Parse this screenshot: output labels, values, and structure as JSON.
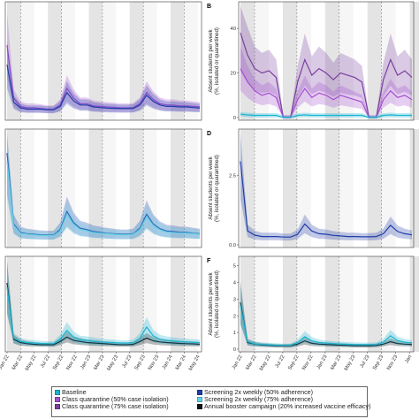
{
  "colors": {
    "baseline": "#1ab4d2",
    "class_q50": "#a44fd0",
    "class_q75": "#7b3fa0",
    "screen50": "#1f3ea8",
    "screen75": "#5fd3e6",
    "booster": "#0c0f14",
    "shade_dark": "#e4e4e4",
    "shade_light": "#f6f6f6",
    "dashed": "#888888"
  },
  "panels": [
    {
      "letter": "",
      "ylabel": ""
    },
    {
      "letter": "B",
      "ylabel": "Absent students per week"
    },
    {
      "letter": "",
      "ylabel": ""
    },
    {
      "letter": "D",
      "ylabel": "Absent students per week"
    },
    {
      "letter": "",
      "ylabel": ""
    },
    {
      "letter": "F",
      "ylabel": "Absent students per week"
    }
  ],
  "ylabel_sub": "(%, isolated or quarantined)",
  "ticks": {
    "left_x": [
      "Jan 22",
      "Mar 22",
      "May 22",
      "Jul 22",
      "Sep 22",
      "Nov 22",
      "Jan 23",
      "Mar 23",
      "May 23",
      "Jul 23",
      "Sep 23",
      "Nov 23",
      "Jan 24",
      "Mar 24",
      "May 24"
    ],
    "right_x": [
      "Jan 22",
      "Mar 22",
      "May 22",
      "Jul 22",
      "Sep 22",
      "Nov 22",
      "Jan 23",
      "Mar 23",
      "May 23",
      "Jul 23",
      "Sep 23",
      "Nov 23",
      "Jan"
    ],
    "panel_b_y": [
      "0",
      "20",
      "40"
    ],
    "panel_d_y": [
      "0.0",
      "2.5"
    ],
    "panel_f_y": [
      "0",
      "1",
      "2",
      "3",
      "4",
      "5"
    ]
  },
  "legend": {
    "col1": [
      {
        "label": "Baseline",
        "color": "#1ab4d2"
      },
      {
        "label": "Class quarantine (50% case isolation)",
        "color": "#a44fd0"
      },
      {
        "label": "Class quarantine (75% case isolation)",
        "color": "#7b3fa0"
      }
    ],
    "col2": [
      {
        "label": "Screening 2x weekly (50% adherence)",
        "color": "#1f3ea8"
      },
      {
        "label": "Screening 2x weekly (75% adherence)",
        "color": "#5fd3e6"
      },
      {
        "label": "Annual booster campaign (20% increased vaccine efficacy)",
        "color": "#0c0f14"
      }
    ]
  },
  "chart_data": [
    {
      "panel": "left-top",
      "type": "line",
      "ylim": [
        0,
        4
      ],
      "x": [
        "Jan 22",
        "Feb 22",
        "Mar 22",
        "Apr 22",
        "May 22",
        "Jun 22",
        "Jul 22",
        "Aug 22",
        "Sep 22",
        "Oct 22",
        "Nov 22",
        "Dec 22",
        "Jan 23",
        "Feb 23",
        "Mar 23",
        "Apr 23",
        "May 23",
        "Jun 23",
        "Jul 23",
        "Aug 23",
        "Sep 23",
        "Oct 23",
        "Nov 23",
        "Dec 23",
        "Jan 24",
        "Feb 24",
        "Mar 24",
        "Apr 24",
        "May 24",
        "Jun 24"
      ],
      "series": [
        {
          "name": "Class quarantine (50% case isolation)",
          "values": [
            2.6,
            0.7,
            0.4,
            0.35,
            0.35,
            0.33,
            0.3,
            0.3,
            0.45,
            1.05,
            0.7,
            0.5,
            0.5,
            0.42,
            0.4,
            0.38,
            0.37,
            0.35,
            0.35,
            0.36,
            0.5,
            0.9,
            0.65,
            0.5,
            0.45,
            0.45,
            0.42,
            0.42,
            0.4,
            0.38
          ]
        },
        {
          "name": "Screening 2x weekly (50% adherence)",
          "values": [
            1.9,
            0.55,
            0.35,
            0.3,
            0.3,
            0.3,
            0.28,
            0.28,
            0.4,
            0.9,
            0.6,
            0.45,
            0.45,
            0.38,
            0.36,
            0.34,
            0.33,
            0.32,
            0.32,
            0.33,
            0.45,
            0.8,
            0.58,
            0.45,
            0.4,
            0.4,
            0.38,
            0.38,
            0.36,
            0.34
          ]
        }
      ]
    },
    {
      "panel": "B",
      "type": "line",
      "ylim": [
        0,
        50
      ],
      "x": [
        "Jan 22",
        "Feb 22",
        "Mar 22",
        "Apr 22",
        "May 22",
        "Jun 22",
        "Jul 22",
        "Aug 22",
        "Sep 22",
        "Oct 22",
        "Nov 22",
        "Dec 22",
        "Jan 23",
        "Feb 23",
        "Mar 23",
        "Apr 23",
        "May 23",
        "Jun 23",
        "Jul 23",
        "Aug 23",
        "Sep 23",
        "Oct 23",
        "Nov 23",
        "Dec 23",
        "Jan 24"
      ],
      "series": [
        {
          "name": "Class quarantine (75% case isolation)",
          "values": [
            38,
            28,
            22,
            20,
            21,
            18,
            0,
            0,
            16,
            26,
            19,
            22,
            20,
            17,
            20,
            19,
            18,
            16,
            0,
            0,
            17,
            26,
            19,
            21,
            18
          ]
        },
        {
          "name": "Class quarantine (50% case isolation)",
          "values": [
            22,
            16,
            12,
            10,
            11,
            9,
            0,
            0,
            8,
            13,
            9,
            11,
            10,
            8,
            10,
            9,
            8,
            7,
            0,
            0,
            8,
            12,
            9,
            10,
            8
          ]
        },
        {
          "name": "Baseline",
          "values": [
            1.5,
            1.2,
            1,
            1,
            1,
            1,
            0,
            0,
            1,
            1.2,
            1,
            1,
            1,
            1,
            1,
            1,
            1,
            1,
            0,
            0,
            1,
            1.2,
            1,
            1,
            1
          ]
        }
      ]
    },
    {
      "panel": "left-middle",
      "type": "line",
      "ylim": [
        0,
        4
      ],
      "x": [
        "Jan 22",
        "Feb 22",
        "Mar 22",
        "Apr 22",
        "May 22",
        "Jun 22",
        "Jul 22",
        "Aug 22",
        "Sep 22",
        "Oct 22",
        "Nov 22",
        "Dec 22",
        "Jan 23",
        "Feb 23",
        "Mar 23",
        "Apr 23",
        "May 23",
        "Jun 23",
        "Jul 23",
        "Aug 23",
        "Sep 23",
        "Oct 23",
        "Nov 23",
        "Dec 23",
        "Jan 24",
        "Feb 24",
        "Mar 24",
        "Apr 24",
        "May 24",
        "Jun 24"
      ],
      "series": [
        {
          "name": "Screening 2x weekly (50% adherence)",
          "values": [
            3.3,
            0.75,
            0.45,
            0.4,
            0.38,
            0.36,
            0.35,
            0.35,
            0.55,
            1.2,
            0.8,
            0.6,
            0.55,
            0.48,
            0.45,
            0.42,
            0.4,
            0.38,
            0.38,
            0.4,
            0.6,
            1.1,
            0.75,
            0.58,
            0.5,
            0.48,
            0.45,
            0.45,
            0.42,
            0.4
          ]
        },
        {
          "name": "Screening 2x weekly (75% adherence)",
          "values": [
            3.0,
            0.7,
            0.42,
            0.38,
            0.36,
            0.34,
            0.33,
            0.33,
            0.5,
            1.1,
            0.72,
            0.55,
            0.5,
            0.44,
            0.42,
            0.4,
            0.38,
            0.36,
            0.36,
            0.38,
            0.55,
            1.0,
            0.7,
            0.54,
            0.46,
            0.44,
            0.42,
            0.42,
            0.4,
            0.38
          ]
        }
      ]
    },
    {
      "panel": "D",
      "type": "line",
      "ylim": [
        0,
        4
      ],
      "x": [
        "Jan 22",
        "Feb 22",
        "Mar 22",
        "Apr 22",
        "May 22",
        "Jun 22",
        "Jul 22",
        "Aug 22",
        "Sep 22",
        "Oct 22",
        "Nov 22",
        "Dec 22",
        "Jan 23",
        "Feb 23",
        "Mar 23",
        "Apr 23",
        "May 23",
        "Jun 23",
        "Jul 23",
        "Aug 23",
        "Sep 23",
        "Oct 23",
        "Nov 23",
        "Dec 23",
        "Jan 24"
      ],
      "series": [
        {
          "name": "Screening 2x weekly (50% adherence)",
          "values": [
            3.0,
            0.5,
            0.35,
            0.3,
            0.3,
            0.3,
            0.28,
            0.28,
            0.38,
            0.75,
            0.5,
            0.4,
            0.38,
            0.34,
            0.32,
            0.3,
            0.3,
            0.29,
            0.29,
            0.3,
            0.4,
            0.7,
            0.48,
            0.4,
            0.36
          ]
        }
      ]
    },
    {
      "panel": "left-bottom",
      "type": "line",
      "ylim": [
        0,
        4
      ],
      "x": [
        "Jan 22",
        "Feb 22",
        "Mar 22",
        "Apr 22",
        "May 22",
        "Jun 22",
        "Jul 22",
        "Aug 22",
        "Sep 22",
        "Oct 22",
        "Nov 22",
        "Dec 22",
        "Jan 23",
        "Feb 23",
        "Mar 23",
        "Apr 23",
        "May 23",
        "Jun 23",
        "Jul 23",
        "Aug 23",
        "Sep 23",
        "Oct 23",
        "Nov 23",
        "Dec 23",
        "Jan 24",
        "Feb 24",
        "Mar 24",
        "Apr 24",
        "May 24",
        "Jun 24"
      ],
      "series": [
        {
          "name": "Annual booster campaign (20% increased vaccine efficacy)",
          "values": [
            3.0,
            0.45,
            0.3,
            0.25,
            0.22,
            0.2,
            0.2,
            0.2,
            0.35,
            0.55,
            0.4,
            0.35,
            0.3,
            0.28,
            0.26,
            0.24,
            0.22,
            0.2,
            0.2,
            0.22,
            0.35,
            0.5,
            0.38,
            0.33,
            0.3,
            0.28,
            0.26,
            0.25,
            0.24,
            0.22
          ]
        },
        {
          "name": "Baseline",
          "values": [
            2.8,
            0.5,
            0.35,
            0.3,
            0.28,
            0.26,
            0.25,
            0.25,
            0.45,
            0.85,
            0.55,
            0.42,
            0.4,
            0.36,
            0.33,
            0.31,
            0.3,
            0.28,
            0.28,
            0.3,
            0.5,
            1.0,
            0.6,
            0.45,
            0.4,
            0.37,
            0.34,
            0.33,
            0.31,
            0.3
          ]
        }
      ]
    },
    {
      "panel": "F",
      "type": "line",
      "ylim": [
        0,
        5.3
      ],
      "x": [
        "Jan 22",
        "Feb 22",
        "Mar 22",
        "Apr 22",
        "May 22",
        "Jun 22",
        "Jul 22",
        "Aug 22",
        "Sep 22",
        "Oct 22",
        "Nov 22",
        "Dec 22",
        "Jan 23",
        "Feb 23",
        "Mar 23",
        "Apr 23",
        "May 23",
        "Jun 23",
        "Jul 23",
        "Aug 23",
        "Sep 23",
        "Oct 23",
        "Nov 23",
        "Dec 23",
        "Jan 24"
      ],
      "series": [
        {
          "name": "Annual booster campaign (20% increased vaccine efficacy)",
          "values": [
            2.8,
            0.4,
            0.3,
            0.25,
            0.22,
            0.2,
            0.2,
            0.2,
            0.3,
            0.5,
            0.35,
            0.3,
            0.28,
            0.26,
            0.24,
            0.22,
            0.2,
            0.2,
            0.2,
            0.22,
            0.3,
            0.45,
            0.34,
            0.3,
            0.28
          ]
        },
        {
          "name": "Baseline",
          "values": [
            2.6,
            0.45,
            0.32,
            0.28,
            0.26,
            0.24,
            0.23,
            0.23,
            0.4,
            0.75,
            0.5,
            0.4,
            0.36,
            0.33,
            0.31,
            0.29,
            0.28,
            0.27,
            0.27,
            0.28,
            0.42,
            0.8,
            0.52,
            0.42,
            0.38
          ]
        }
      ]
    }
  ]
}
